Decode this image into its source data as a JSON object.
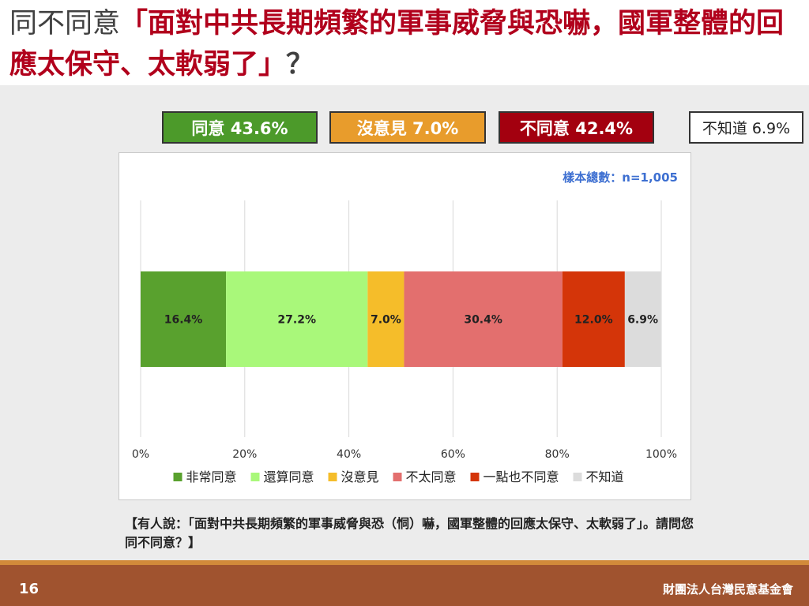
{
  "title": {
    "lead": "同不同意",
    "quote": "「面對中共長期頻繁的軍事威脅與恐嚇，國軍整體的回應太保守、太軟弱了」",
    "tail": "？"
  },
  "summary": {
    "agree": "同意 43.6%",
    "no_opinion": "沒意見 7.0%",
    "disagree": "不同意 42.4%",
    "unknown": "不知道 6.9%"
  },
  "sample_size": "樣本總數：n=1,005",
  "note": "【有人說：「面對中共長期頻繁的軍事威脅與恐（恫）嚇，國軍整體的回應太保守、太軟弱了」。請問您同不同意？】",
  "footer": {
    "page_number": "16",
    "organization": "財團法人台灣民意基金會"
  },
  "chart_data": {
    "type": "bar",
    "orientation": "horizontal",
    "stacked": true,
    "xlim": [
      0,
      100
    ],
    "x_ticks": [
      "0%",
      "20%",
      "40%",
      "60%",
      "80%",
      "100%"
    ],
    "grid": true,
    "legend_position": "bottom",
    "series": [
      {
        "name": "非常同意",
        "value": 16.4,
        "label": "16.4%",
        "color": "#59a12e"
      },
      {
        "name": "還算同意",
        "value": 27.2,
        "label": "27.2%",
        "color": "#a9f87a"
      },
      {
        "name": "沒意見",
        "value": 7.0,
        "label": "7.0%",
        "color": "#f5bd2a"
      },
      {
        "name": "不太同意",
        "value": 30.4,
        "label": "30.4%",
        "color": "#e36f6e"
      },
      {
        "name": "一點也不同意",
        "value": 12.0,
        "label": "12.0%",
        "color": "#d43509"
      },
      {
        "name": "不知道",
        "value": 6.9,
        "label": "6.9%",
        "color": "#dcdcdc"
      }
    ]
  }
}
